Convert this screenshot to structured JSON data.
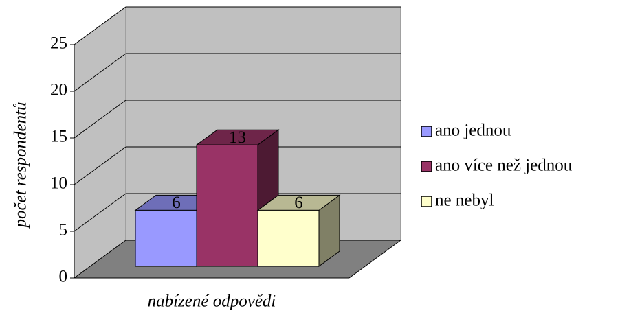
{
  "chart_data": {
    "type": "bar3d",
    "ylabel": "počet respondentů",
    "xlabel": "nabízené odpovědi",
    "series": [
      {
        "name": "ano jednou",
        "color": "#9999ff",
        "values": [
          6
        ]
      },
      {
        "name": "ano více než jednou",
        "color": "#993366",
        "values": [
          13
        ]
      },
      {
        "name": "ne nebyl",
        "color": "#ffffcc",
        "values": [
          6
        ]
      }
    ],
    "ylim": [
      0,
      25
    ],
    "yticks": [
      0,
      5,
      10,
      15,
      20,
      25
    ],
    "grid": true,
    "legend": "right"
  }
}
